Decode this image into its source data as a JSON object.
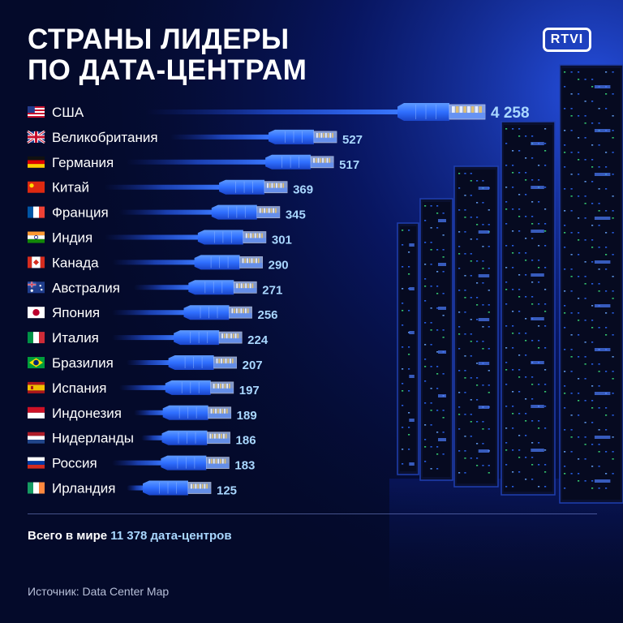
{
  "header": {
    "title_line1": "СТРАНЫ ЛИДЕРЫ",
    "title_line2": "ПО ДАТА-ЦЕНТРАМ",
    "logo_text": "RTVI"
  },
  "chart_data": {
    "type": "bar",
    "title": "СТРАНЫ ЛИДЕРЫ ПО ДАТА-ЦЕНТРАМ",
    "orientation": "horizontal",
    "categories": [
      "США",
      "Великобритания",
      "Германия",
      "Китай",
      "Франция",
      "Индия",
      "Канада",
      "Австралия",
      "Япония",
      "Италия",
      "Бразилия",
      "Испания",
      "Индонезия",
      "Нидерланды",
      "Россия",
      "Ирландия"
    ],
    "values": [
      4258,
      527,
      517,
      369,
      345,
      301,
      290,
      271,
      256,
      224,
      207,
      197,
      189,
      186,
      183,
      125
    ],
    "value_labels": [
      "4 258",
      "527",
      "517",
      "369",
      "345",
      "301",
      "290",
      "271",
      "256",
      "224",
      "207",
      "197",
      "189",
      "186",
      "183",
      "125"
    ],
    "flags": [
      "us",
      "gb",
      "de",
      "cn",
      "fr",
      "in",
      "ca",
      "au",
      "jp",
      "it",
      "br",
      "es",
      "id",
      "nl",
      "ru",
      "ie"
    ],
    "bar_style": "ethernet-cable",
    "bar_color": "#2f6fff",
    "value_color": "#a9d7ff"
  },
  "footer": {
    "total_prefix": "Всего в мире ",
    "total_highlight": "11 378 дата-центров",
    "source": "Источник: Data Center Map"
  },
  "colors": {
    "background": "#040a2a",
    "accent": "#2f6fff"
  }
}
